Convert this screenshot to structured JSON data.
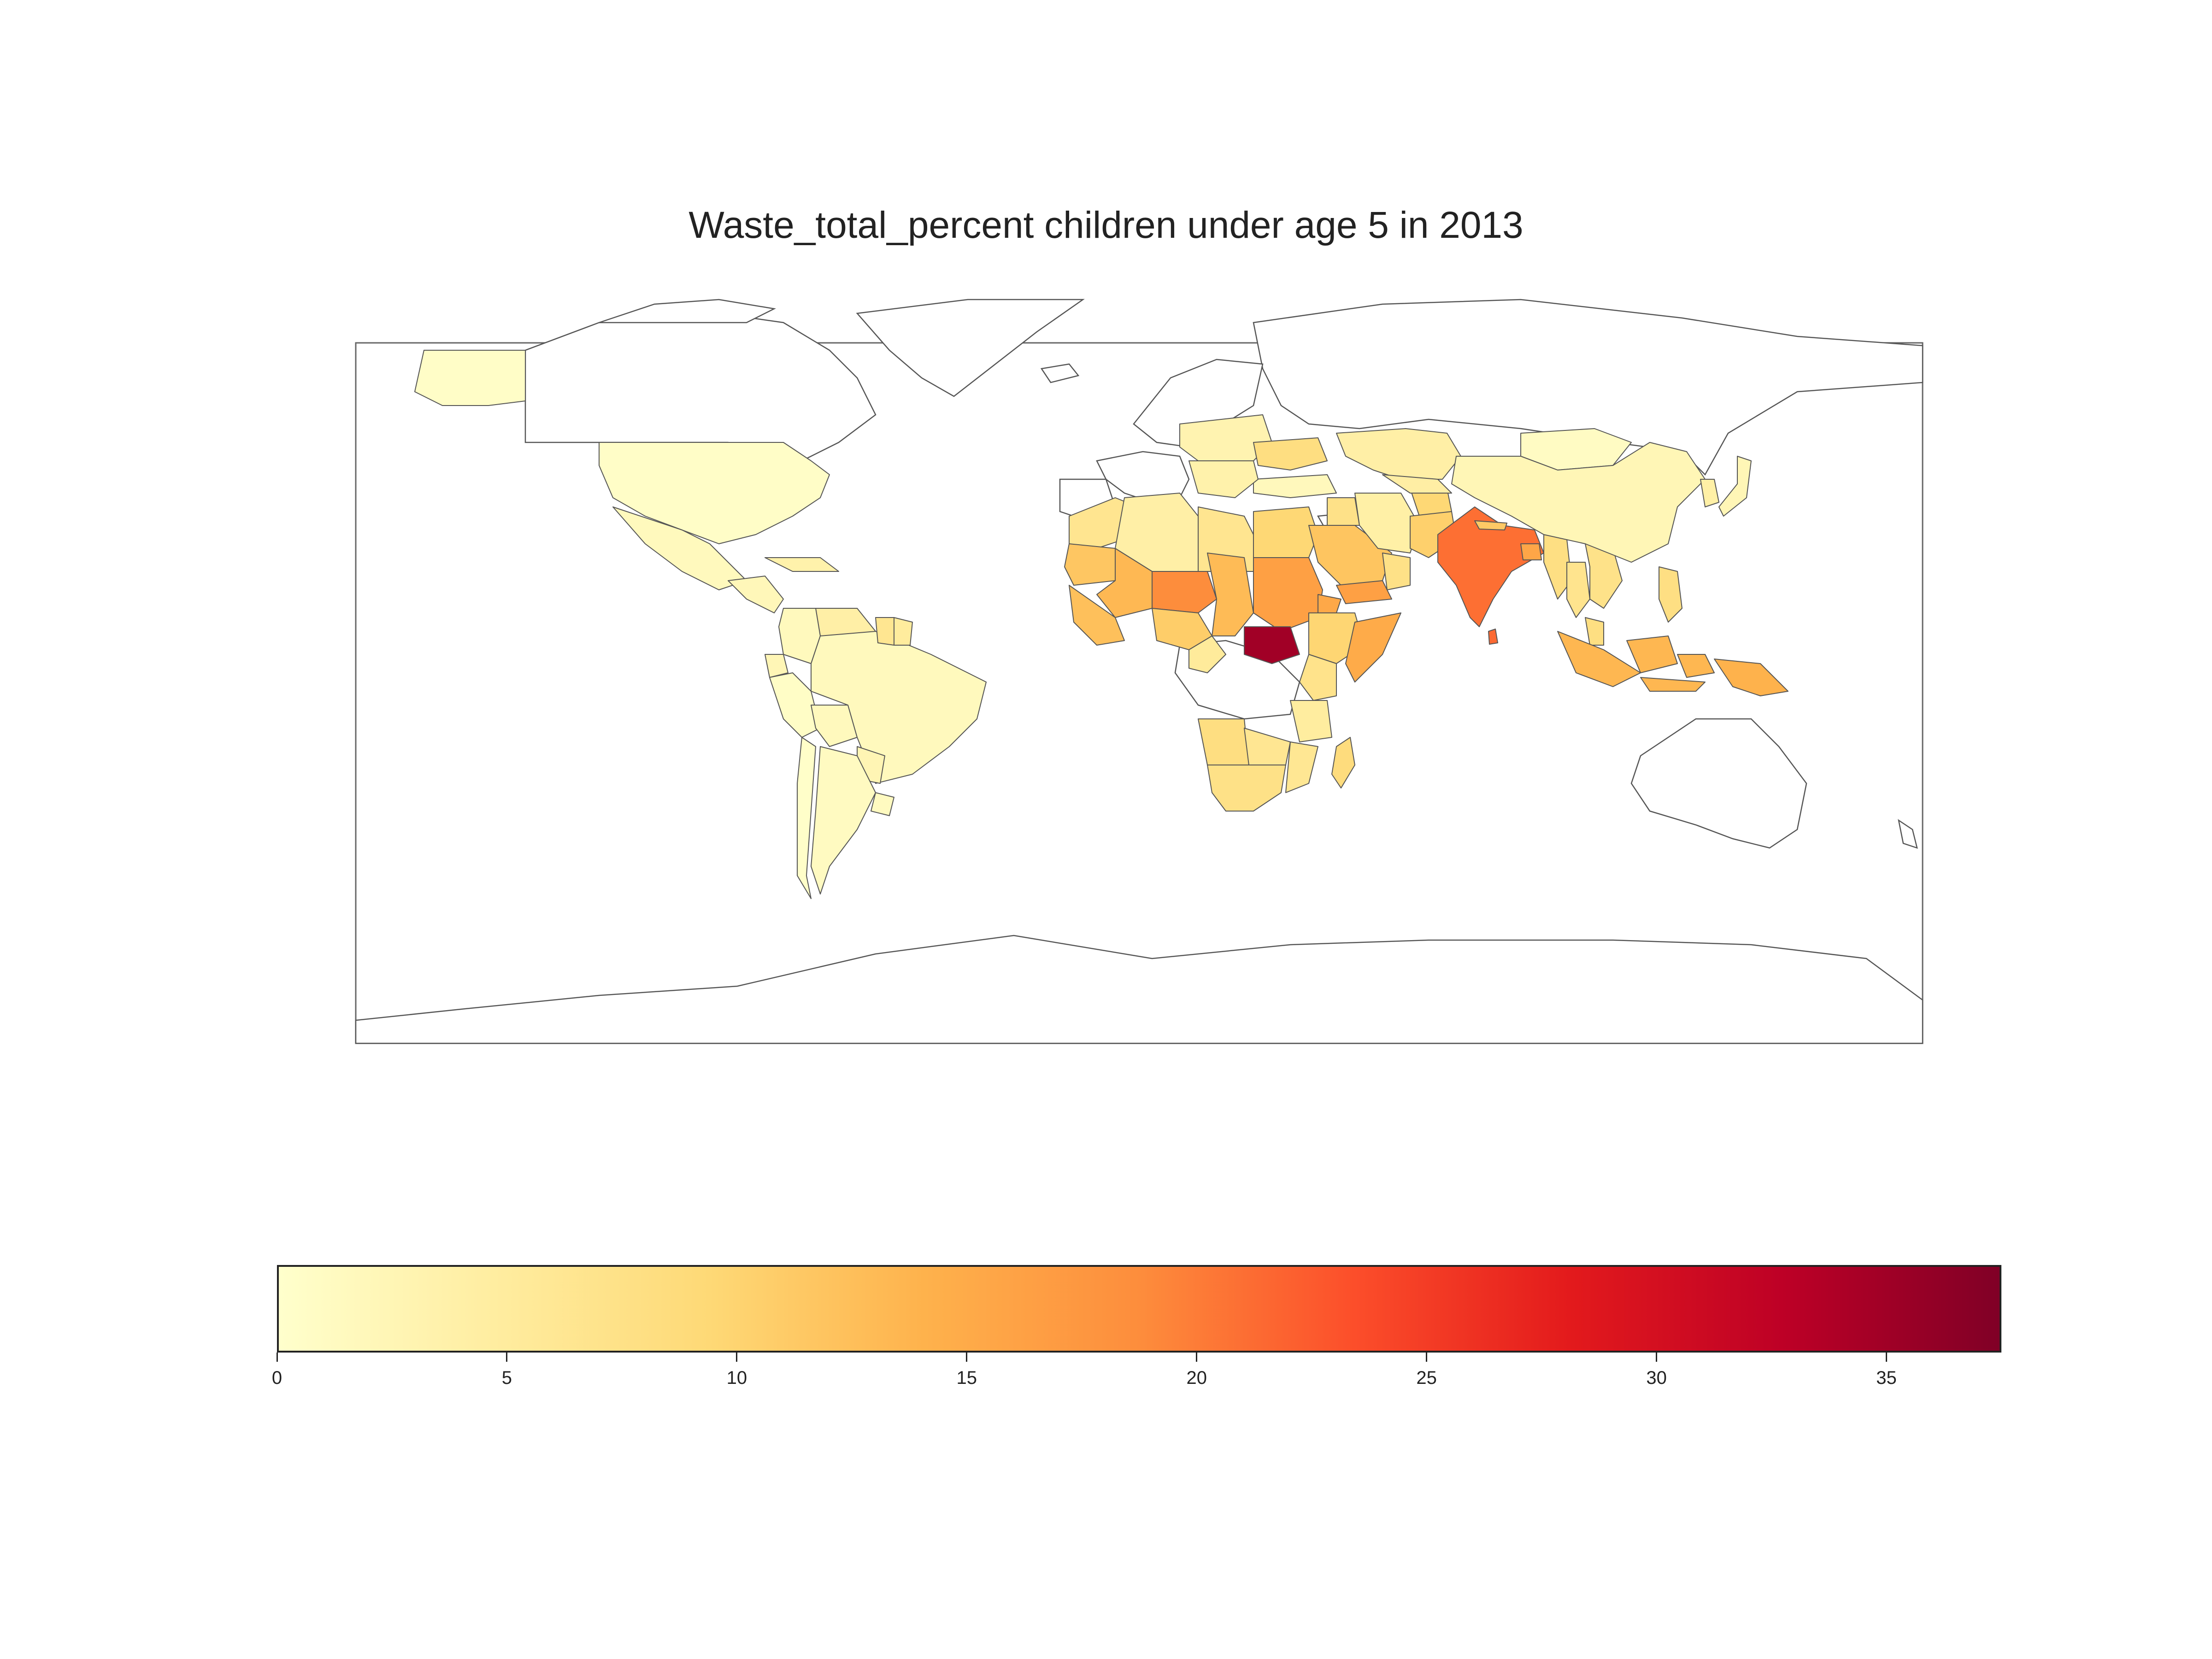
{
  "chart_data": {
    "type": "choropleth",
    "title": "Waste_total_percent children under age 5 in 2013",
    "colormap": "YlOrRd",
    "colorbar": {
      "min": 0,
      "max": 37.5,
      "ticks": [
        0,
        5,
        10,
        15,
        20,
        25,
        30,
        35
      ],
      "tick_labels": [
        "0",
        "5",
        "10",
        "15",
        "20",
        "25",
        "30",
        "35"
      ]
    },
    "regions": [
      {
        "name": "United States",
        "value": 0.5
      },
      {
        "name": "Alaska",
        "value": 0.5
      },
      {
        "name": "Mexico",
        "value": 1.6
      },
      {
        "name": "Central America",
        "value": 2.0
      },
      {
        "name": "Caribbean",
        "value": 3.5
      },
      {
        "name": "Venezuela",
        "value": 4.1
      },
      {
        "name": "Colombia",
        "value": 1.6
      },
      {
        "name": "Ecuador",
        "value": 2.3
      },
      {
        "name": "Peru",
        "value": 0.6
      },
      {
        "name": "Bolivia",
        "value": 1.6
      },
      {
        "name": "Brazil",
        "value": 1.6
      },
      {
        "name": "Paraguay",
        "value": 2.6
      },
      {
        "name": "Argentina",
        "value": 1.2
      },
      {
        "name": "Chile",
        "value": 0.3
      },
      {
        "name": "Uruguay",
        "value": 1.3
      },
      {
        "name": "Guyana",
        "value": 6.4
      },
      {
        "name": "Suriname",
        "value": 5.0
      },
      {
        "name": "Northwest Africa",
        "value": 6.5
      },
      {
        "name": "Algeria",
        "value": 4.1
      },
      {
        "name": "Libya",
        "value": 6.5
      },
      {
        "name": "Egypt",
        "value": 9.5
      },
      {
        "name": "Mauritania",
        "value": 11.6
      },
      {
        "name": "Mali",
        "value": 13.3
      },
      {
        "name": "Niger",
        "value": 18.7
      },
      {
        "name": "Chad",
        "value": 13.0
      },
      {
        "name": "Sudan",
        "value": 16.3
      },
      {
        "name": "South Sudan",
        "value": 35.0
      },
      {
        "name": "Ethiopia",
        "value": 9.7
      },
      {
        "name": "Eritrea",
        "value": 15.3
      },
      {
        "name": "Somalia",
        "value": 15.0
      },
      {
        "name": "West Africa Coast",
        "value": 12.4
      },
      {
        "name": "Nigeria",
        "value": 10.8
      },
      {
        "name": "Cameroon",
        "value": 5.2
      },
      {
        "name": "Kenya",
        "value": 7.0
      },
      {
        "name": "Tanzania",
        "value": 4.8
      },
      {
        "name": "Angola",
        "value": 8.2
      },
      {
        "name": "Zambia",
        "value": 6.3
      },
      {
        "name": "Southern Africa",
        "value": 7.5
      },
      {
        "name": "Mozambique",
        "value": 6.1
      },
      {
        "name": "Madagascar",
        "value": 8.6
      },
      {
        "name": "Saudi Arabia",
        "value": 11.8
      },
      {
        "name": "Yemen",
        "value": 16.3
      },
      {
        "name": "Oman",
        "value": 7.5
      },
      {
        "name": "Turkey",
        "value": 1.7
      },
      {
        "name": "Iraq",
        "value": 7.4
      },
      {
        "name": "Iran",
        "value": 4.0
      },
      {
        "name": "Afghanistan",
        "value": 9.5
      },
      {
        "name": "Pakistan",
        "value": 10.5
      },
      {
        "name": "India",
        "value": 21.0
      },
      {
        "name": "Sri Lanka",
        "value": 21.4
      },
      {
        "name": "Nepal",
        "value": 11.3
      },
      {
        "name": "Bangladesh",
        "value": 15.6
      },
      {
        "name": "Myanmar",
        "value": 7.9
      },
      {
        "name": "Thailand",
        "value": 6.7
      },
      {
        "name": "Indochina",
        "value": 7.2
      },
      {
        "name": "Philippines",
        "value": 7.9
      },
      {
        "name": "Malaysia",
        "value": 8.0
      },
      {
        "name": "Indonesia",
        "value": 13.5
      },
      {
        "name": "Papua New Guinea",
        "value": 14.1
      },
      {
        "name": "Kazakhstan",
        "value": 4.1
      },
      {
        "name": "Central Asia",
        "value": 4.3
      },
      {
        "name": "Mongolia",
        "value": 1.0
      },
      {
        "name": "China",
        "value": 2.3
      },
      {
        "name": "Korea",
        "value": 4.0
      },
      {
        "name": "Japan",
        "value": 2.3
      },
      {
        "name": "Eastern Europe",
        "value": 3.0
      },
      {
        "name": "Ukraine",
        "value": 8.2
      },
      {
        "name": "Balkans",
        "value": 3.5
      }
    ]
  }
}
